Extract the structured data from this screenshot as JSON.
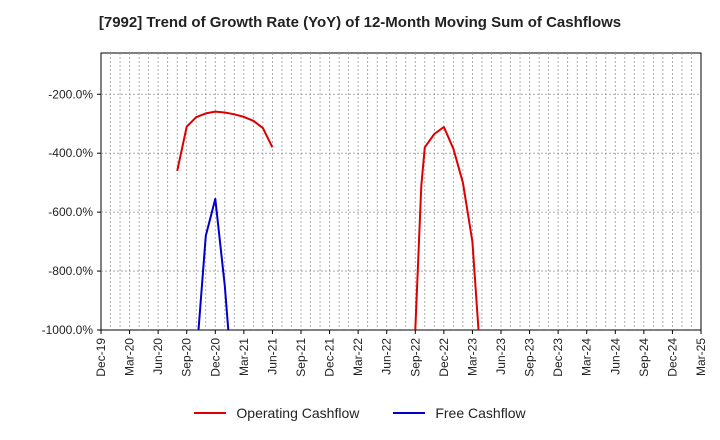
{
  "chart_data": {
    "type": "line",
    "title": "[7992]  Trend of Growth Rate (YoY) of 12-Month Moving Sum of Cashflows",
    "ylim": [
      -1000,
      -60
    ],
    "y_ticks": [
      -200,
      -400,
      -600,
      -800,
      -1000
    ],
    "y_tick_labels": [
      "-200.0%",
      "-400.0%",
      "-600.0%",
      "-800.0%",
      "-1000.0%"
    ],
    "x_range": [
      "2019-12",
      "2025-03"
    ],
    "x_tick_labels": [
      "Dec-19",
      "Mar-20",
      "Jun-20",
      "Sep-20",
      "Dec-20",
      "Mar-21",
      "Jun-21",
      "Sep-21",
      "Dec-21",
      "Mar-22",
      "Jun-22",
      "Sep-22",
      "Dec-22",
      "Mar-23",
      "Jun-23",
      "Sep-23",
      "Dec-23",
      "Mar-24",
      "Jun-24",
      "Sep-24",
      "Dec-24",
      "Mar-25"
    ],
    "grid": true,
    "legend_position": "bottom",
    "series": [
      {
        "name": "Operating Cashflow",
        "color": "#dd0000",
        "segments": [
          [
            [
              "2020-08",
              -460
            ],
            [
              "2020-09",
              -310
            ],
            [
              "2020-10",
              -278
            ],
            [
              "2020-11",
              -265
            ],
            [
              "2020-12",
              -259
            ],
            [
              "2021-01",
              -262
            ],
            [
              "2021-02",
              -268
            ],
            [
              "2021-03",
              -277
            ],
            [
              "2021-04",
              -290
            ],
            [
              "2021-05",
              -315
            ],
            [
              "2021-06",
              -380
            ]
          ],
          [
            [
              "2022-09",
              -1000
            ],
            [
              "2022-09-20",
              -510
            ],
            [
              "2022-10",
              -380
            ],
            [
              "2022-11",
              -335
            ],
            [
              "2022-12",
              -311
            ],
            [
              "2023-01",
              -385
            ],
            [
              "2023-02",
              -500
            ],
            [
              "2023-03",
              -700
            ],
            [
              "2023-03-20",
              -1000
            ]
          ]
        ]
      },
      {
        "name": "Free Cashflow",
        "color": "#0000cc",
        "segments": [
          [
            [
              "2020-10-08",
              -1000
            ],
            [
              "2020-11",
              -680
            ],
            [
              "2020-12",
              -555
            ],
            [
              "2021-01",
              -850
            ],
            [
              "2021-01-12",
              -1000
            ]
          ]
        ]
      }
    ]
  }
}
